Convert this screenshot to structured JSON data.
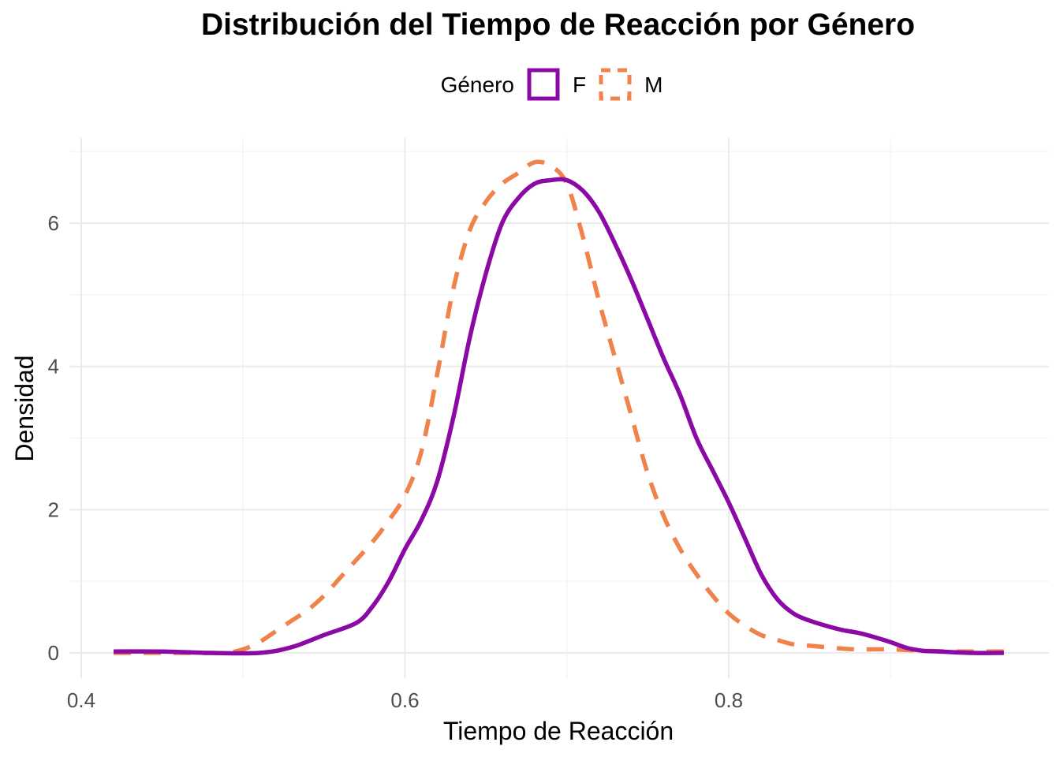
{
  "chart_data": {
    "type": "line",
    "title": "Distribución del Tiempo de Reacción por Género",
    "xlabel": "Tiempo de Reacción",
    "ylabel": "Densidad",
    "xlim": [
      0.4,
      0.99
    ],
    "ylim": [
      0,
      7
    ],
    "x_ticks": [
      "0.4",
      "0.6",
      "0.8"
    ],
    "x_tick_values": [
      0.4,
      0.6,
      0.8
    ],
    "y_ticks": [
      "0",
      "2",
      "4",
      "6"
    ],
    "y_tick_values": [
      0,
      2,
      4,
      6
    ],
    "grid": true,
    "legend": {
      "title": "Género",
      "position": "top"
    },
    "series": [
      {
        "name": "F",
        "color": "#8b0aa5",
        "linestyle": "solid",
        "x": [
          0.42,
          0.45,
          0.48,
          0.51,
          0.53,
          0.55,
          0.57,
          0.58,
          0.59,
          0.6,
          0.61,
          0.62,
          0.63,
          0.64,
          0.65,
          0.66,
          0.67,
          0.68,
          0.69,
          0.7,
          0.71,
          0.72,
          0.73,
          0.74,
          0.75,
          0.76,
          0.77,
          0.78,
          0.79,
          0.8,
          0.81,
          0.82,
          0.83,
          0.84,
          0.85,
          0.86,
          0.87,
          0.88,
          0.89,
          0.9,
          0.91,
          0.92,
          0.93,
          0.95,
          0.97
        ],
        "y": [
          0.02,
          0.02,
          0.0,
          0.0,
          0.08,
          0.25,
          0.42,
          0.65,
          1.0,
          1.45,
          1.85,
          2.4,
          3.3,
          4.4,
          5.3,
          6.0,
          6.35,
          6.55,
          6.6,
          6.6,
          6.45,
          6.15,
          5.7,
          5.2,
          4.65,
          4.1,
          3.6,
          3.0,
          2.55,
          2.1,
          1.6,
          1.1,
          0.75,
          0.55,
          0.45,
          0.38,
          0.32,
          0.28,
          0.22,
          0.15,
          0.07,
          0.03,
          0.02,
          0.0,
          0.0
        ]
      },
      {
        "name": "M",
        "color": "#f0824b",
        "linestyle": "dashed",
        "x": [
          0.42,
          0.45,
          0.48,
          0.49,
          0.5,
          0.51,
          0.52,
          0.53,
          0.54,
          0.55,
          0.56,
          0.57,
          0.58,
          0.59,
          0.6,
          0.61,
          0.62,
          0.63,
          0.64,
          0.65,
          0.66,
          0.67,
          0.68,
          0.69,
          0.7,
          0.71,
          0.72,
          0.73,
          0.74,
          0.75,
          0.76,
          0.77,
          0.78,
          0.79,
          0.8,
          0.81,
          0.82,
          0.83,
          0.84,
          0.85,
          0.86,
          0.87,
          0.88,
          0.9,
          0.92,
          0.94,
          0.97
        ],
        "y": [
          0.0,
          0.0,
          0.0,
          0.0,
          0.05,
          0.15,
          0.3,
          0.45,
          0.6,
          0.8,
          1.05,
          1.3,
          1.55,
          1.85,
          2.2,
          2.8,
          3.9,
          5.1,
          5.9,
          6.3,
          6.55,
          6.7,
          6.85,
          6.8,
          6.55,
          5.8,
          4.9,
          4.1,
          3.3,
          2.5,
          1.9,
          1.45,
          1.1,
          0.8,
          0.55,
          0.38,
          0.25,
          0.18,
          0.12,
          0.1,
          0.08,
          0.06,
          0.05,
          0.05,
          0.03,
          0.02,
          0.02
        ]
      }
    ]
  }
}
